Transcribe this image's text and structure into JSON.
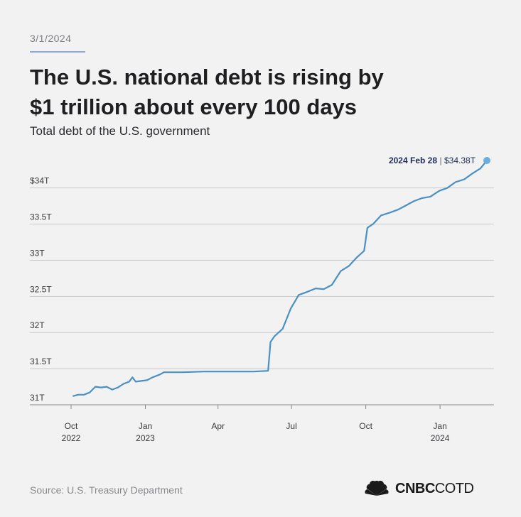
{
  "header": {
    "date": "3/1/2024",
    "title_line1": "The U.S. national debt is rising by",
    "title_line2": "$1 trillion about every 100 days",
    "subtitle": "Total debt of the U.S. government"
  },
  "footer": {
    "source": "Source: U.S. Treasury Department",
    "brand_bold": "CNBC",
    "brand_light": "COTD",
    "logo_icon": "peacock-icon"
  },
  "colors": {
    "line": "#4a90c4",
    "grid": "#c9c9cc",
    "background": "#f2f2f3",
    "accent": "#8fa6d8"
  },
  "chart_data": {
    "type": "line",
    "title": "",
    "xlabel": "",
    "ylabel": "",
    "ylim": [
      31.0,
      34.38
    ],
    "y_ticks": [
      {
        "value": 34.0,
        "label": "$34T"
      },
      {
        "value": 33.5,
        "label": "33.5T"
      },
      {
        "value": 33.0,
        "label": "33T"
      },
      {
        "value": 32.5,
        "label": "32.5T"
      },
      {
        "value": 32.0,
        "label": "32T"
      },
      {
        "value": 31.5,
        "label": "31.5T"
      },
      {
        "value": 31.0,
        "label": "31T"
      }
    ],
    "x_range": [
      "2022-10-01",
      "2024-02-28"
    ],
    "x_ticks": [
      {
        "date": "2022-10-01",
        "label1": "Oct",
        "label2": "2022"
      },
      {
        "date": "2023-01-01",
        "label1": "Jan",
        "label2": "2023"
      },
      {
        "date": "2023-04-01",
        "label1": "Apr",
        "label2": ""
      },
      {
        "date": "2023-07-01",
        "label1": "Jul",
        "label2": ""
      },
      {
        "date": "2023-10-01",
        "label1": "Oct",
        "label2": ""
      },
      {
        "date": "2024-01-01",
        "label1": "Jan",
        "label2": "2024"
      }
    ],
    "grid": "horizontal",
    "series": [
      {
        "points": [
          [
            "2022-10-03",
            31.12
          ],
          [
            "2022-10-10",
            31.14
          ],
          [
            "2022-10-17",
            31.14
          ],
          [
            "2022-10-24",
            31.17
          ],
          [
            "2022-10-31",
            31.25
          ],
          [
            "2022-11-07",
            31.24
          ],
          [
            "2022-11-14",
            31.25
          ],
          [
            "2022-11-21",
            31.21
          ],
          [
            "2022-11-28",
            31.24
          ],
          [
            "2022-12-05",
            31.29
          ],
          [
            "2022-12-12",
            31.32
          ],
          [
            "2022-12-16",
            31.38
          ],
          [
            "2022-12-20",
            31.32
          ],
          [
            "2022-12-27",
            31.33
          ],
          [
            "2023-01-03",
            31.34
          ],
          [
            "2023-01-10",
            31.38
          ],
          [
            "2023-01-19",
            31.42
          ],
          [
            "2023-01-24",
            31.45
          ],
          [
            "2023-02-15",
            31.45
          ],
          [
            "2023-03-15",
            31.46
          ],
          [
            "2023-04-15",
            31.46
          ],
          [
            "2023-05-15",
            31.46
          ],
          [
            "2023-06-02",
            31.47
          ],
          [
            "2023-06-05",
            31.87
          ],
          [
            "2023-06-10",
            31.95
          ],
          [
            "2023-06-20",
            32.05
          ],
          [
            "2023-06-30",
            32.33
          ],
          [
            "2023-07-10",
            32.52
          ],
          [
            "2023-07-20",
            32.56
          ],
          [
            "2023-07-31",
            32.61
          ],
          [
            "2023-08-10",
            32.6
          ],
          [
            "2023-08-20",
            32.66
          ],
          [
            "2023-08-31",
            32.85
          ],
          [
            "2023-09-10",
            32.92
          ],
          [
            "2023-09-20",
            33.04
          ],
          [
            "2023-09-29",
            33.13
          ],
          [
            "2023-10-03",
            33.45
          ],
          [
            "2023-10-10",
            33.5
          ],
          [
            "2023-10-20",
            33.62
          ],
          [
            "2023-10-31",
            33.66
          ],
          [
            "2023-11-10",
            33.7
          ],
          [
            "2023-11-20",
            33.76
          ],
          [
            "2023-11-30",
            33.82
          ],
          [
            "2023-12-10",
            33.86
          ],
          [
            "2023-12-20",
            33.88
          ],
          [
            "2023-12-31",
            33.96
          ],
          [
            "2024-01-10",
            34.0
          ],
          [
            "2024-01-20",
            34.08
          ],
          [
            "2024-01-31",
            34.12
          ],
          [
            "2024-02-10",
            34.2
          ],
          [
            "2024-02-20",
            34.27
          ],
          [
            "2024-02-28",
            34.38
          ]
        ]
      }
    ],
    "annotation": {
      "date": "2024-02-28",
      "value": 34.38,
      "date_label": "2024 Feb 28",
      "value_label": "$34.38T"
    }
  }
}
